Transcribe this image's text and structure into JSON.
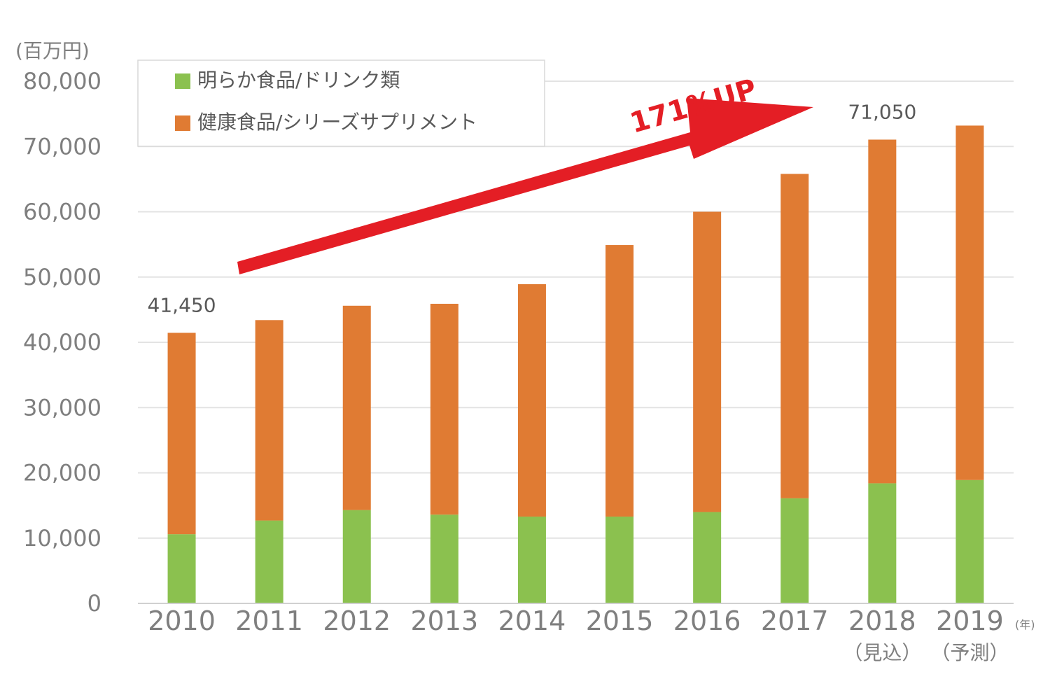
{
  "chart_data": {
    "type": "bar",
    "stacked": true,
    "y_unit": "(百万円)",
    "x_unit": "(年)",
    "categories": [
      "2010",
      "2011",
      "2012",
      "2013",
      "2014",
      "2015",
      "2016",
      "2017",
      "2018",
      "2019"
    ],
    "category_sublabels": [
      "",
      "",
      "",
      "",
      "",
      "",
      "",
      "",
      "（見込）",
      "（予測）"
    ],
    "series": [
      {
        "name": "明らか食品/ドリンク類",
        "color": "#8bc14f",
        "values": [
          10600,
          12700,
          14300,
          13600,
          13300,
          13300,
          14000,
          16100,
          18400,
          18900
        ]
      },
      {
        "name": "健康食品/シリーズサプリメント",
        "color": "#e07b33",
        "values": [
          30850,
          30700,
          31300,
          32300,
          35600,
          41600,
          46000,
          49700,
          52650,
          54300
        ]
      }
    ],
    "totals_labels": [
      {
        "category": "2010",
        "text": "41,450"
      },
      {
        "category": "2018",
        "text": "71,050"
      }
    ],
    "ylim": [
      0,
      80000
    ],
    "yticks": [
      "0",
      "10,000",
      "20,000",
      "30,000",
      "40,000",
      "50,000",
      "60,000",
      "70,000",
      "80,000"
    ],
    "grid": true,
    "legend": "top-left",
    "annotation": {
      "text": "171%UP",
      "color": "#e41e25"
    }
  }
}
